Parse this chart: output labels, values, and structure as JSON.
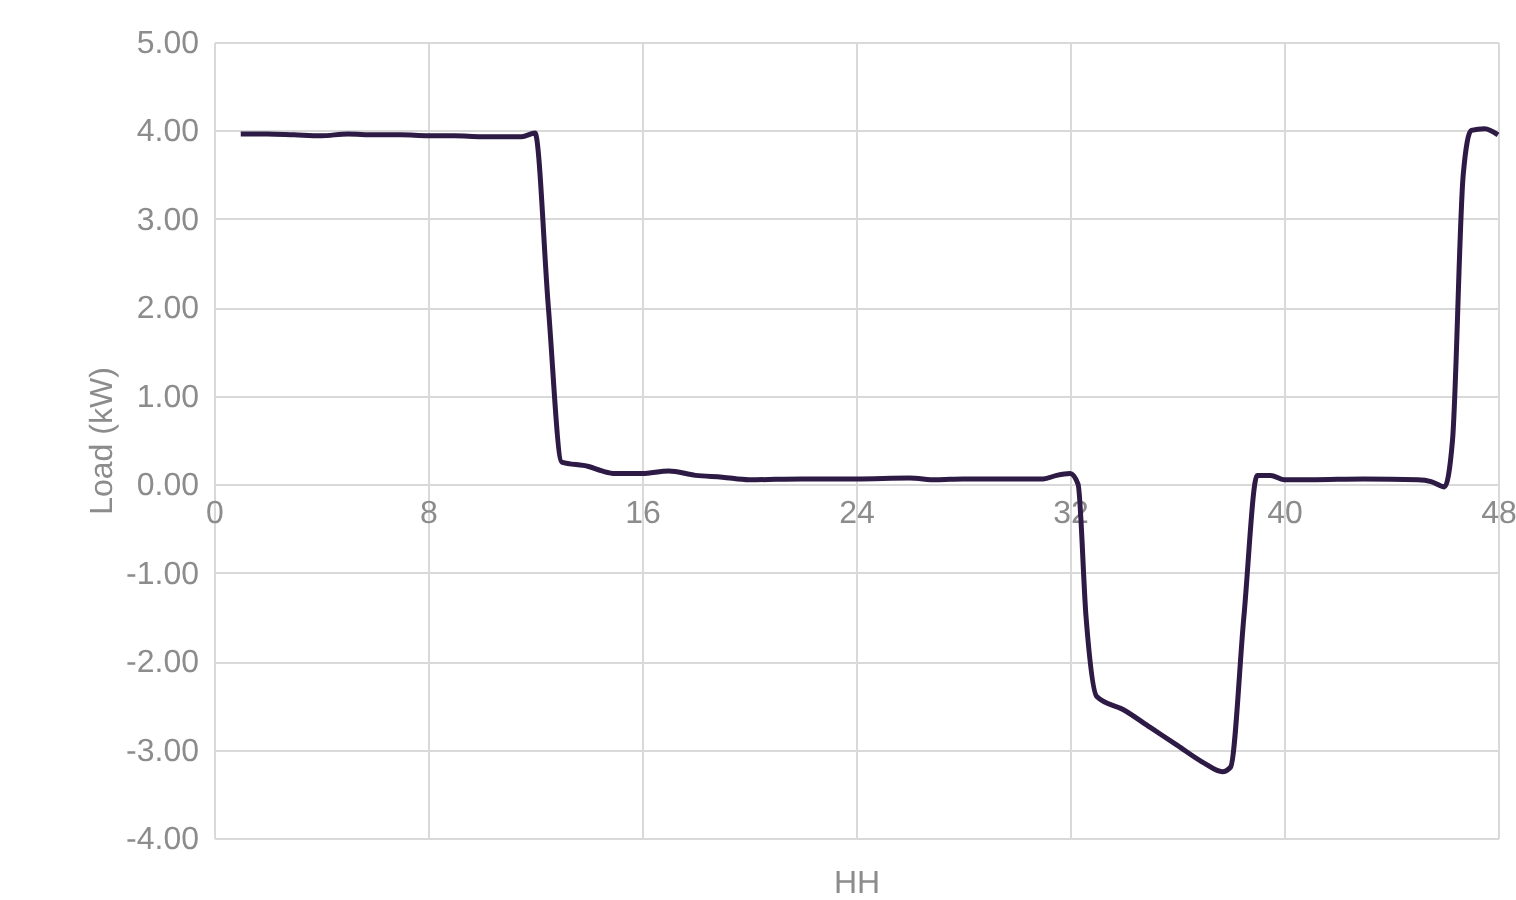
{
  "chart_data": {
    "type": "line",
    "xlabel": "HH",
    "ylabel": "Load (kW)",
    "x": [
      1,
      2,
      3,
      4,
      5,
      6,
      7,
      8,
      9,
      10,
      11,
      11.5,
      12,
      12.5,
      13,
      14,
      14.5,
      15,
      16,
      17,
      18,
      19,
      20,
      22,
      24,
      26,
      27,
      28,
      30,
      31,
      31.5,
      32,
      32.3,
      32.6,
      33,
      34,
      35,
      36,
      37,
      37.7,
      38,
      38.5,
      39,
      39.5,
      40,
      41,
      43,
      45,
      45.5,
      46,
      46.3,
      46.7,
      47,
      47.5,
      48
    ],
    "series": [
      {
        "color": "#2d1a45",
        "values": [
          3.96,
          3.96,
          3.95,
          3.94,
          3.96,
          3.95,
          3.95,
          3.94,
          3.94,
          3.93,
          3.93,
          3.93,
          3.97,
          2.0,
          0.25,
          0.2,
          0.15,
          0.12,
          0.12,
          0.15,
          0.1,
          0.08,
          0.05,
          0.06,
          0.06,
          0.07,
          0.05,
          0.06,
          0.06,
          0.06,
          0.1,
          0.12,
          0.0,
          -1.5,
          -2.4,
          -2.55,
          -2.75,
          -2.95,
          -3.15,
          -3.25,
          -3.2,
          -1.5,
          0.1,
          0.1,
          0.05,
          0.05,
          0.06,
          0.05,
          0.03,
          -0.03,
          0.5,
          3.5,
          4.0,
          4.02,
          3.95
        ]
      }
    ],
    "xlim": [
      0,
      48
    ],
    "xticks": [
      0,
      8,
      16,
      24,
      32,
      40,
      48
    ],
    "ylim": [
      -4,
      5
    ],
    "yticks": [
      {
        "value": -4,
        "label": "-4.00"
      },
      {
        "value": -3,
        "label": "-3.00"
      },
      {
        "value": -2,
        "label": "-2.00"
      },
      {
        "value": -1,
        "label": "-1.00"
      },
      {
        "value": 0,
        "label": "0.00"
      },
      {
        "value": 1,
        "label": "1.00"
      },
      {
        "value": 2,
        "label": "2.00"
      },
      {
        "value": 3,
        "label": "3.00"
      },
      {
        "value": 4,
        "label": "4.00"
      },
      {
        "value": 5,
        "label": "5.00"
      }
    ],
    "grid": true,
    "marker": "none",
    "line_style": "solid"
  }
}
